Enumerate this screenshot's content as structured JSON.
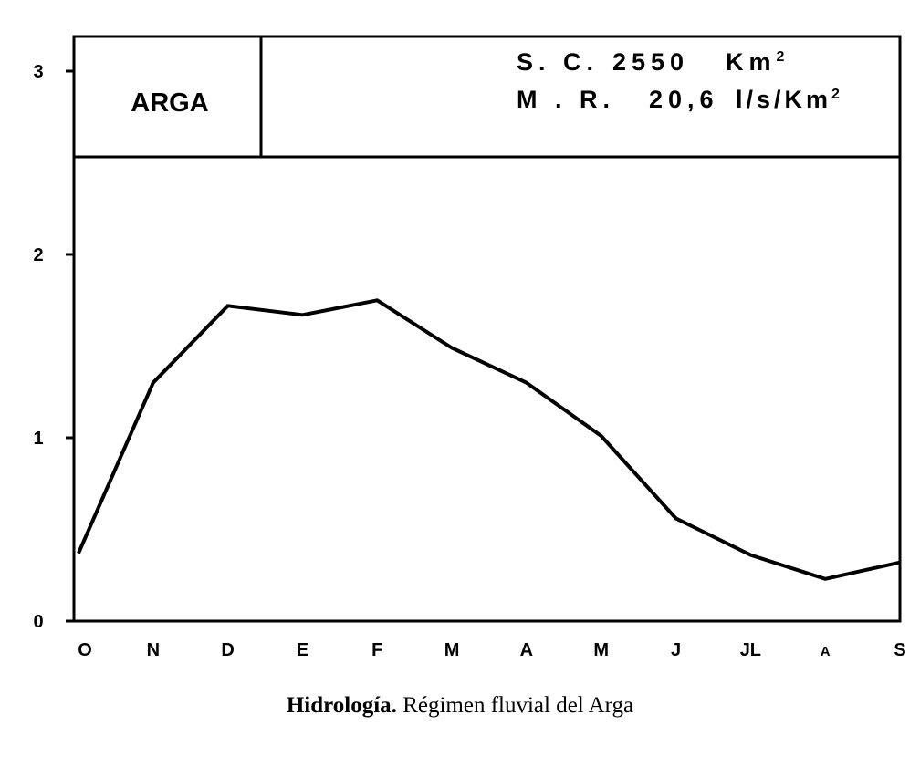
{
  "chart_data": {
    "type": "line",
    "categories": [
      "O",
      "N",
      "D",
      "E",
      "F",
      "M",
      "A",
      "M",
      "J",
      "JL",
      "A",
      "S"
    ],
    "values": [
      0.37,
      1.3,
      1.72,
      1.67,
      1.75,
      1.49,
      1.3,
      1.01,
      0.56,
      0.36,
      0.23,
      0.32
    ],
    "ylim": [
      0,
      3.2
    ],
    "yticks": [
      "0",
      "1",
      "2",
      "3"
    ],
    "grid": false
  },
  "header_box": {
    "river_name": "ARGA",
    "sc_label": "S. C.",
    "sc_value": "2550",
    "sc_unit": "Km",
    "sc_unit_exp": "2",
    "mr_label": "M . R.",
    "mr_value": "20,6",
    "mr_unit": "l/s/Km",
    "mr_unit_exp": "2"
  },
  "caption": {
    "bold": "Hidrología.",
    "rest": " Régimen fluvial del Arga"
  }
}
